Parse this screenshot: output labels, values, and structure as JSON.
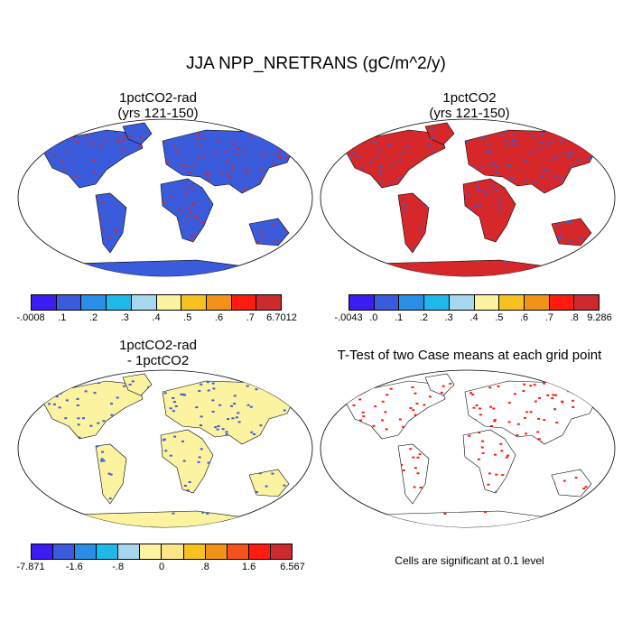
{
  "title": "JJA NPP_NRETRANS (gC/m^2/y)",
  "panels": [
    {
      "title": "1pctCO2-rad",
      "subtitle": "(yrs 121-150)"
    },
    {
      "title": "1pctCO2",
      "subtitle": "(yrs 121-150)"
    },
    {
      "title": "1pctCO2-rad",
      "subtitle": "- 1pctCO2"
    },
    {
      "title": "T-Test of two Case means at each grid point",
      "subtitle": ""
    }
  ],
  "colorbars": [
    {
      "colors": [
        "#3b1cf2",
        "#3a5bdb",
        "#2a8ee6",
        "#1fb8ea",
        "#a7d6ef",
        "#fbf3a0",
        "#f6c221",
        "#f39219",
        "#fd1c0f",
        "#cc2a2f"
      ],
      "labels": [
        "-.0008",
        ".1",
        ".2",
        ".3",
        ".4",
        ".5",
        ".6",
        ".7",
        "6.7012"
      ]
    },
    {
      "colors": [
        "#3b1cf2",
        "#3a5bdb",
        "#2a8ee6",
        "#1fb8ea",
        "#a7d6ef",
        "#fbf3a0",
        "#f6c221",
        "#f39219",
        "#fd1c0f",
        "#cc2a2f"
      ],
      "labels": [
        "-.0043",
        ".0",
        ".1",
        ".2",
        ".3",
        ".4",
        ".5",
        ".6",
        ".7",
        ".8",
        "9.286"
      ]
    },
    {
      "colors": [
        "#3b1cf2",
        "#3a5bdb",
        "#2a8ee6",
        "#1fb8ea",
        "#a7d6ef",
        "#fbf3a0",
        "#fde68a",
        "#f6c221",
        "#f39219",
        "#f5531c",
        "#fd1c0f",
        "#cc2a2f"
      ],
      "labels": [
        "-7.871",
        "-1.6",
        "-.8",
        "0",
        ".8",
        "1.6",
        "6.567"
      ]
    }
  ],
  "significance_note": "Cells are significant at 0.1 level",
  "colors": {
    "map_ocean": "#ffffff",
    "land_low": "#3a5bdb",
    "land_high": "#d6282b",
    "diff_base": "#fbf3a0",
    "sig": "#fd1c0f"
  }
}
